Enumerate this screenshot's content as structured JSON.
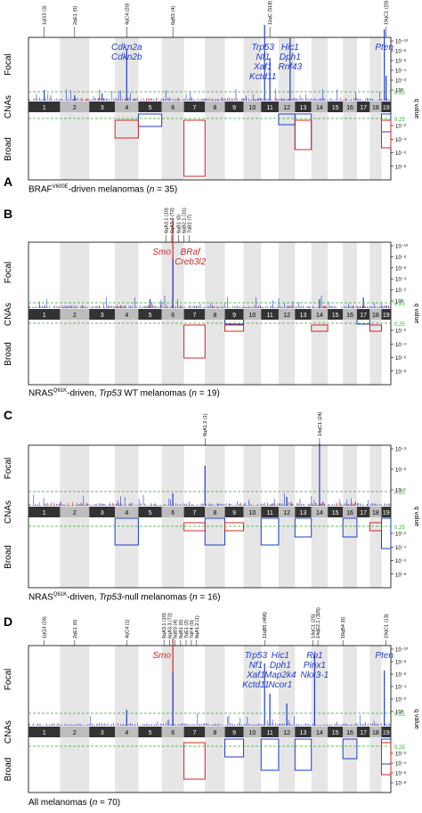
{
  "figure": {
    "colors": {
      "amp": "#1f3ccc",
      "del": "#d42626",
      "threshold": "#33aa33",
      "chrom_dark": "#333333",
      "chrom_light": "#bdbdbd",
      "stripe": "#e6e6e6"
    },
    "chromosomes": [
      "1",
      "2",
      "3",
      "4",
      "5",
      "6",
      "7",
      "8",
      "9",
      "10",
      "11",
      "12",
      "13",
      "14",
      "15",
      "16",
      "17",
      "18",
      "19"
    ],
    "shared_labels": {
      "focal": "Focal",
      "broad": "Broad",
      "cnas": "CNAs",
      "qvalue": "q value",
      "threshold": "0.25"
    },
    "panels": [
      {
        "letter": "A",
        "caption": {
          "pre": "BRAF",
          "sup": "V600E",
          "post": "-driven melanomas (",
          "n": "n",
          "tail": " = 35)"
        },
        "top_ticks": [
          "10⁻¹⁰",
          "10⁻⁸",
          "10⁻⁶",
          "10⁻⁴",
          "10⁻²",
          "10⁰"
        ],
        "bottom_ticks": [
          "10⁻²",
          "10⁻⁴",
          "10⁻⁶",
          "10⁻⁸"
        ],
        "peaks": [
          {
            "text": "1qG3 (3)",
            "chrom": 1
          },
          {
            "text": "2qE1 (0)",
            "chrom": 2
          },
          {
            "text": "4qC4 (20)",
            "chrom": 4
          },
          {
            "text": "6qB3 (4)",
            "chrom": 6
          },
          {
            "text": "11qC (518)",
            "chrom": 11
          },
          {
            "text": "19qC1 (20)",
            "chrom": 19
          }
        ],
        "genes": [
          {
            "lines": [
              "Cdkn2a",
              "Cdkn2b"
            ],
            "color": "amp",
            "chrom": 4
          },
          {
            "lines": [
              "Trp53",
              "Nf1",
              "Xaf1",
              "Kctd11"
            ],
            "color": "amp",
            "chrom": 10.6
          },
          {
            "lines": [
              "Hic1",
              "Dph1",
              "Rnf43"
            ],
            "color": "amp",
            "chrom": 12.2
          },
          {
            "lines": [
              "Pten"
            ],
            "color": "amp",
            "chrom": 18.8
          }
        ]
      },
      {
        "letter": "B",
        "caption": {
          "pre": "NRAS",
          "sup": "Q61K",
          "post": "-driven, ",
          "gene": "Trp53",
          "mid": " WT melanomas (",
          "n": "n",
          "tail": " = 19)"
        },
        "top_ticks": [
          "10⁻¹⁰",
          "10⁻⁸",
          "10⁻⁶",
          "10⁻⁴",
          "10⁻²",
          "10⁰"
        ],
        "bottom_ticks": [
          "10⁻²",
          "10⁻⁴",
          "10⁻⁶",
          "10⁻⁸"
        ],
        "peaks": [
          {
            "text": "6qA3.1 (10)",
            "chrom": 5.7
          },
          {
            "text": "6qA3.3 (72)",
            "chrom": 5.95
          },
          {
            "text": "6qB1 (0)",
            "chrom": 6.25
          },
          {
            "text": "6qB2.1 (31)",
            "chrom": 6.5
          },
          {
            "text": "7qB1 (7)",
            "chrom": 6.75
          }
        ],
        "genes": [
          {
            "lines": [
              "Smo"
            ],
            "color": "del",
            "chrom": 5.5
          },
          {
            "lines": [
              "BRaf",
              "Creb3l2"
            ],
            "color": "del",
            "chrom": 6.8
          }
        ]
      },
      {
        "letter": "C",
        "caption": {
          "pre": "NRAS",
          "sup": "Q61K",
          "post": "-driven, ",
          "gene": "Trp53",
          "mid": "-null melanomas (",
          "n": "n",
          "tail": " = 16)"
        },
        "top_ticks": [
          "10⁻³",
          "10⁻²",
          "10⁻¹"
        ],
        "bottom_ticks": [
          "10⁻²",
          "10⁻⁴",
          "10⁻⁶",
          "10⁻⁸"
        ],
        "peaks": [
          {
            "text": "8qA1.2 (1)",
            "chrom": 7.5
          },
          {
            "text": "14qC1 (24)",
            "chrom": 14
          }
        ],
        "genes": []
      },
      {
        "letter": "D",
        "caption": {
          "pre": "All melanomas (",
          "n": "n",
          "tail": " = 70)"
        },
        "top_ticks": [
          "10⁻¹⁰",
          "10⁻⁸",
          "10⁻⁶",
          "10⁻⁴",
          "10⁻²",
          "10⁰"
        ],
        "bottom_ticks": [
          "10⁻²",
          "10⁻⁴",
          "10⁻⁶",
          "10⁻⁸"
        ],
        "peaks": [
          {
            "text": "1qG3 (24)",
            "chrom": 1
          },
          {
            "text": "2qE1 (0)",
            "chrom": 2
          },
          {
            "text": "4qC4 (1)",
            "chrom": 4
          },
          {
            "text": "6qA3.1 (10)",
            "chrom": 5.6
          },
          {
            "text": "6qA3.3 (72)",
            "chrom": 5.85
          },
          {
            "text": "6qB3 (4)",
            "chrom": 6.1
          },
          {
            "text": "6qB1 (0)",
            "chrom": 6.35
          },
          {
            "text": "7qE1 (2)",
            "chrom": 6.6
          },
          {
            "text": "7qF4 (0)",
            "chrom": 6.85
          },
          {
            "text": "8qA1.2 (1)",
            "chrom": 7.1
          },
          {
            "text": "11qB5 (466)",
            "chrom": 10.7
          },
          {
            "text": "14qC1 (25)",
            "chrom": 13.6
          },
          {
            "text": "14qE2.1 (325)",
            "chrom": 13.9
          },
          {
            "text": "16qB4 (0)",
            "chrom": 15.5
          },
          {
            "text": "19qC1 (13)",
            "chrom": 19
          }
        ],
        "genes": [
          {
            "lines": [
              "Smo"
            ],
            "color": "del",
            "chrom": 5.5
          },
          {
            "lines": [
              "Trp53",
              "Nf1",
              "Xaf1",
              "Kctd11"
            ],
            "color": "amp",
            "chrom": 10.2
          },
          {
            "lines": [
              "Hic1",
              "Dph1",
              "Map2k4",
              "Ncor1"
            ],
            "color": "amp",
            "chrom": 11.6
          },
          {
            "lines": [
              "Rb1",
              "Pinx1",
              "Nkx3-1"
            ],
            "color": "amp",
            "chrom": 13.7
          },
          {
            "lines": [
              "Pten"
            ],
            "color": "amp",
            "chrom": 18.8
          }
        ]
      }
    ]
  }
}
